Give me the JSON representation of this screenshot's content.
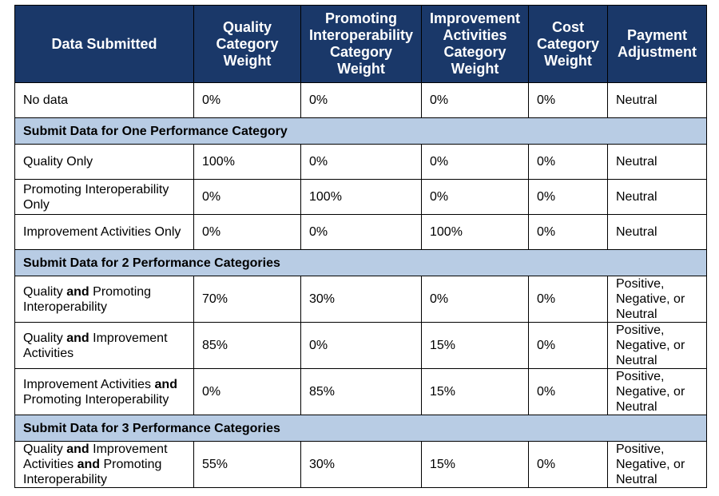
{
  "headers": [
    "Data Submitted",
    "Quality Category Weight",
    "Promoting Interoperability Category Weight",
    "Improvement Activities Category Weight",
    "Cost Category Weight",
    "Payment Adjustment"
  ],
  "rows": {
    "no_data": {
      "label": "No data",
      "cells": [
        "0%",
        "0%",
        "0%",
        "0%",
        "Neutral"
      ]
    },
    "section1": "Submit Data for One Performance Category",
    "quality_only": {
      "label": "Quality Only",
      "cells": [
        "100%",
        "0%",
        "0%",
        "0%",
        "Neutral"
      ]
    },
    "pi_only": {
      "label": "Promoting Interoperability Only",
      "cells": [
        "0%",
        "100%",
        "0%",
        "0%",
        "Neutral"
      ]
    },
    "ia_only": {
      "label": "Improvement Activities Only",
      "cells": [
        "0%",
        "0%",
        "100%",
        "0%",
        "Neutral"
      ]
    },
    "section2": "Submit Data for 2 Performance Categories",
    "q_pi": {
      "label_a": "Quality",
      "join": "and",
      "label_b": "Promoting Interoperability",
      "cells": [
        "70%",
        "30%",
        "0%",
        "0%",
        "Positive, Negative, or Neutral"
      ]
    },
    "q_ia": {
      "label_a": "Quality",
      "join": "and",
      "label_b": "Improvement Activities",
      "cells": [
        "85%",
        "0%",
        "15%",
        "0%",
        "Positive, Negative, or Neutral"
      ]
    },
    "ia_pi": {
      "label_a": "Improvement Activities",
      "join": "and",
      "label_b": "Promoting Interoperability",
      "cells": [
        "0%",
        "85%",
        "15%",
        "0%",
        "Positive, Negative, or Neutral"
      ]
    },
    "section3": "Submit Data for 3 Performance Categories",
    "q_ia_pi": {
      "label_a": "Quality",
      "join1": "and",
      "label_b": "Improvement Activities",
      "join2": "and",
      "label_c": "Promoting Interoperability",
      "cells": [
        "55%",
        "30%",
        "15%",
        "0%",
        "Positive, Negative, or Neutral"
      ]
    }
  }
}
